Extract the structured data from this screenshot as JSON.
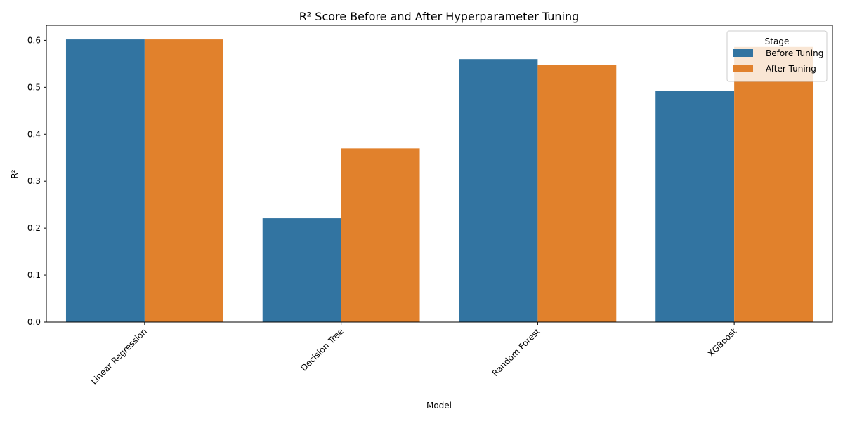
{
  "chart_data": {
    "type": "bar",
    "title": "R² Score Before and After Hyperparameter Tuning",
    "xlabel": "Model",
    "ylabel": "R²",
    "categories": [
      "Linear Regression",
      "Decision Tree",
      "Random Forest",
      "XGBoost"
    ],
    "series": [
      {
        "name": "Before Tuning",
        "color": "#3274a1",
        "values": [
          0.602,
          0.221,
          0.56,
          0.492
        ]
      },
      {
        "name": "After Tuning",
        "color": "#e1812c",
        "values": [
          0.602,
          0.37,
          0.548,
          0.586
        ]
      }
    ],
    "ylim": [
      0,
      0.632
    ],
    "yticks": [
      "0.0",
      "0.1",
      "0.2",
      "0.3",
      "0.4",
      "0.5",
      "0.6"
    ],
    "ytick_values": [
      0.0,
      0.1,
      0.2,
      0.3,
      0.4,
      0.5,
      0.6
    ],
    "xtick_rotation_deg": 45,
    "grid": false,
    "legend": {
      "title": "Stage",
      "placement": "top-right"
    }
  }
}
